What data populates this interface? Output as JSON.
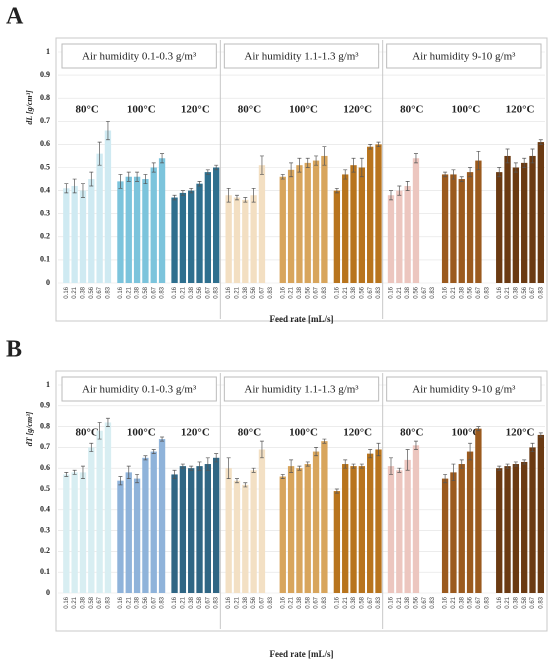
{
  "chart_data": [
    {
      "type": "bar",
      "panel_label": "A",
      "ylabel": "dL [g/cm³]",
      "xlabel": "Feed rate [mL/s]",
      "ylim": [
        0,
        1
      ],
      "yticks": [
        0,
        0.1,
        0.2,
        0.3,
        0.4,
        0.5,
        0.6,
        0.7,
        0.8,
        0.9,
        1
      ],
      "grid": true,
      "panels": [
        {
          "title": "Air humidity 0.1-0.3 g/m³",
          "groups": [
            {
              "name": "80°C",
              "color": "#cfeaf2",
              "categories": [
                "0.16",
                "0.21",
                "0.38",
                "0.56",
                "0.67",
                "0.83"
              ],
              "values": [
                0.41,
                0.42,
                0.4,
                0.45,
                0.56,
                0.66
              ],
              "errors": [
                0.02,
                0.03,
                0.03,
                0.03,
                0.05,
                0.04
              ]
            },
            {
              "name": "100°C",
              "color": "#7cc4dc",
              "categories": [
                "0.16",
                "0.21",
                "0.38",
                "0.58",
                "0.67",
                "0.83"
              ],
              "values": [
                0.44,
                0.46,
                0.46,
                0.45,
                0.5,
                0.54
              ],
              "errors": [
                0.03,
                0.02,
                0.02,
                0.02,
                0.02,
                0.02
              ]
            },
            {
              "name": "120°C",
              "color": "#2e6f8e",
              "categories": [
                "0.16",
                "0.21",
                "0.38",
                "0.56",
                "0.67",
                "0.83"
              ],
              "values": [
                0.37,
                0.39,
                0.4,
                0.43,
                0.48,
                0.5
              ],
              "errors": [
                0.01,
                0.01,
                0.01,
                0.01,
                0.01,
                0.01
              ]
            }
          ]
        },
        {
          "title": "Air humidity 1.1-1.3 g/m³",
          "groups": [
            {
              "name": "80°C",
              "color": "#f3dfc2",
              "categories": [
                "0.16",
                "0.21",
                "0.38",
                "0.56",
                "0.67",
                "0.83"
              ],
              "values": [
                0.38,
                0.37,
                0.36,
                0.38,
                0.51,
                null
              ],
              "errors": [
                0.03,
                0.01,
                0.01,
                0.03,
                0.04,
                null
              ]
            },
            {
              "name": "100°C",
              "color": "#d8a55c",
              "categories": [
                "0.16",
                "0.21",
                "0.38",
                "0.56",
                "0.67",
                "0.83"
              ],
              "values": [
                0.46,
                0.49,
                0.51,
                0.52,
                0.53,
                0.55
              ],
              "errors": [
                0.01,
                0.03,
                0.03,
                0.02,
                0.02,
                0.04
              ]
            },
            {
              "name": "120°C",
              "color": "#b8741d",
              "categories": [
                "0.16",
                "0.21",
                "0.38",
                "0.56",
                "0.67",
                "0.83"
              ],
              "values": [
                0.4,
                0.47,
                0.51,
                0.5,
                0.59,
                0.6
              ],
              "errors": [
                0.01,
                0.02,
                0.03,
                0.04,
                0.01,
                0.01
              ]
            }
          ]
        },
        {
          "title": "Air humidity 9-10 g/m³",
          "groups": [
            {
              "name": "80°C",
              "color": "#ecc6bf",
              "categories": [
                "0.16",
                "0.21",
                "0.38",
                "0.56",
                "0.67",
                "0.83"
              ],
              "values": [
                0.38,
                0.4,
                0.42,
                0.54,
                null,
                null
              ],
              "errors": [
                0.02,
                0.02,
                0.02,
                0.02,
                null,
                null
              ]
            },
            {
              "name": "100°C",
              "color": "#9b5a1e",
              "categories": [
                "0.16",
                "0.21",
                "0.38",
                "0.56",
                "0.67",
                "0.83"
              ],
              "values": [
                0.47,
                0.47,
                0.45,
                0.48,
                0.53,
                null
              ],
              "errors": [
                0.01,
                0.02,
                0.01,
                0.02,
                0.04,
                null
              ]
            },
            {
              "name": "120°C",
              "color": "#6b3a12",
              "categories": [
                "0.16",
                "0.21",
                "0.38",
                "0.56",
                "0.67",
                "0.83"
              ],
              "values": [
                0.48,
                0.55,
                0.5,
                0.52,
                0.55,
                0.61
              ],
              "errors": [
                0.02,
                0.03,
                0.02,
                0.02,
                0.03,
                0.01
              ]
            }
          ]
        }
      ]
    },
    {
      "type": "bar",
      "panel_label": "B",
      "ylabel": "dT [g/cm³]",
      "xlabel": "Feed rate [mL/s]",
      "ylim": [
        0,
        1
      ],
      "yticks": [
        0,
        0.1,
        0.2,
        0.3,
        0.4,
        0.5,
        0.6,
        0.7,
        0.8,
        0.9,
        1
      ],
      "grid": true,
      "panels": [
        {
          "title": "Air humidity 0.1-0.3 g/m³",
          "groups": [
            {
              "name": "80°C",
              "color": "#d8eef2",
              "categories": [
                "0.16",
                "0.21",
                "0.38",
                "0.58",
                "0.67",
                "0.83"
              ],
              "values": [
                0.57,
                0.58,
                0.58,
                0.7,
                0.78,
                0.82
              ],
              "errors": [
                0.01,
                0.01,
                0.03,
                0.02,
                0.04,
                0.02
              ]
            },
            {
              "name": "100°C",
              "color": "#8fb3da",
              "categories": [
                "0.16",
                "0.21",
                "0.38",
                "0.56",
                "0.67",
                "0.83"
              ],
              "values": [
                0.54,
                0.58,
                0.55,
                0.65,
                0.68,
                0.74
              ],
              "errors": [
                0.02,
                0.03,
                0.02,
                0.01,
                0.01,
                0.01
              ]
            },
            {
              "name": "120°C",
              "color": "#2f6684",
              "categories": [
                "0.16",
                "0.21",
                "0.38",
                "0.58",
                "0.67",
                "0.83"
              ],
              "values": [
                0.57,
                0.61,
                0.6,
                0.61,
                0.62,
                0.65
              ],
              "errors": [
                0.02,
                0.01,
                0.01,
                0.02,
                0.03,
                0.02
              ]
            }
          ]
        },
        {
          "title": "Air humidity 1.1-1.3 g/m³",
          "groups": [
            {
              "name": "80°C",
              "color": "#f3e0c4",
              "categories": [
                "0.16",
                "0.21",
                "0.38",
                "0.56",
                "0.67",
                "0.83"
              ],
              "values": [
                0.6,
                0.54,
                0.52,
                0.59,
                0.69,
                null
              ],
              "errors": [
                0.05,
                0.01,
                0.01,
                0.01,
                0.04,
                null
              ]
            },
            {
              "name": "100°C",
              "color": "#d8a55c",
              "categories": [
                "0.16",
                "0.21",
                "0.38",
                "0.58",
                "0.67",
                "0.83"
              ],
              "values": [
                0.56,
                0.61,
                0.6,
                0.62,
                0.68,
                0.73
              ],
              "errors": [
                0.01,
                0.03,
                0.01,
                0.01,
                0.02,
                0.01
              ]
            },
            {
              "name": "120°C",
              "color": "#b8741d",
              "categories": [
                "0.16",
                "0.21",
                "0.38",
                "0.58",
                "0.67",
                "0.83"
              ],
              "values": [
                0.49,
                0.62,
                0.61,
                0.61,
                0.67,
                0.69
              ],
              "errors": [
                0.01,
                0.02,
                0.01,
                0.01,
                0.02,
                0.03
              ]
            }
          ]
        },
        {
          "title": "Air humidity 9-10 g/m³",
          "groups": [
            {
              "name": "80°C",
              "color": "#ecc6bf",
              "categories": [
                "0.16",
                "0.21",
                "0.38",
                "0.56",
                "0.67",
                "0.83"
              ],
              "values": [
                0.61,
                0.59,
                0.64,
                0.71,
                null,
                null
              ],
              "errors": [
                0.04,
                0.01,
                0.05,
                0.02,
                null,
                null
              ]
            },
            {
              "name": "100°C",
              "color": "#9b5a1e",
              "categories": [
                "0.16",
                "0.21",
                "0.38",
                "0.56",
                "0.67",
                "0.83"
              ],
              "values": [
                0.55,
                0.58,
                0.62,
                0.68,
                0.79,
                null
              ],
              "errors": [
                0.02,
                0.04,
                0.02,
                0.04,
                0.01,
                null
              ]
            },
            {
              "name": "120°C",
              "color": "#6b3a12",
              "categories": [
                "0.16",
                "0.21",
                "0.38",
                "0.58",
                "0.67",
                "0.83"
              ],
              "values": [
                0.6,
                0.61,
                0.62,
                0.63,
                0.7,
                0.76
              ],
              "errors": [
                0.01,
                0.01,
                0.01,
                0.01,
                0.02,
                0.01
              ]
            }
          ]
        }
      ]
    }
  ]
}
